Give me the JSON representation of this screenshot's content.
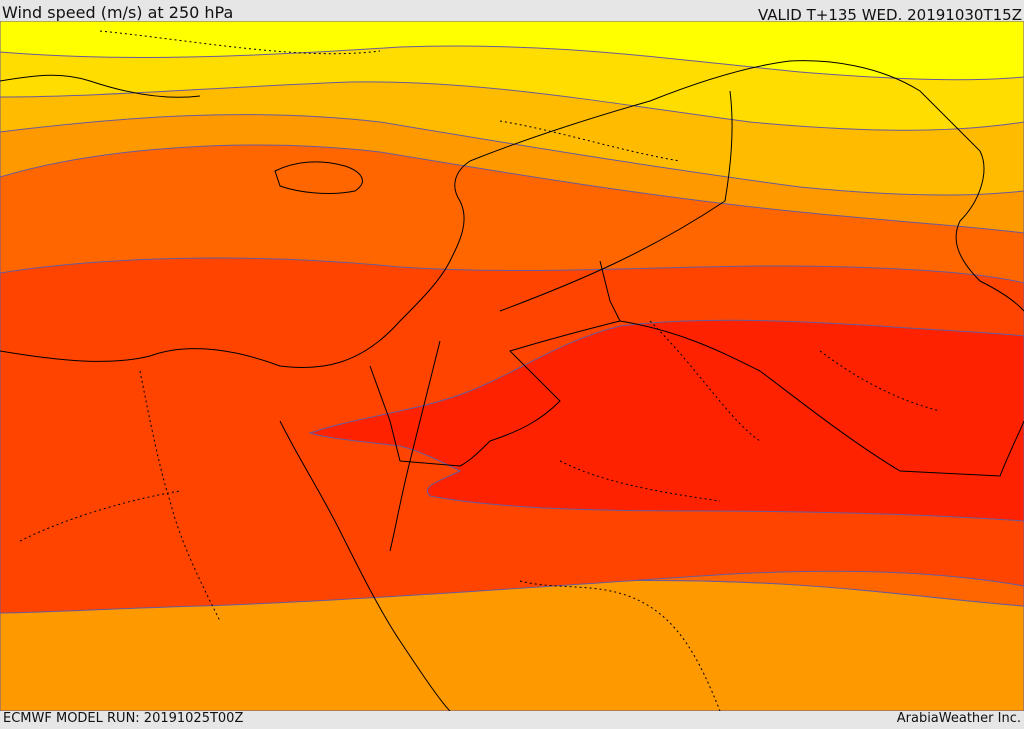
{
  "header": {
    "title": "Wind speed (m/s) at 250 hPa",
    "valid_time": "VALID T+135 WED. 20191030T15Z"
  },
  "footer": {
    "model_run": "ECMWF MODEL RUN: 20191025T00Z",
    "provider": "ArabiaWeather Inc."
  },
  "colors": {
    "band_1": "#ffff00",
    "band_2": "#ffdd00",
    "band_3": "#ffbb00",
    "band_4": "#ff9900",
    "band_5": "#ff6600",
    "band_6": "#ff4400",
    "band_7": "#ff2200",
    "contour": "#6a5a9a",
    "border": "#000000"
  }
}
